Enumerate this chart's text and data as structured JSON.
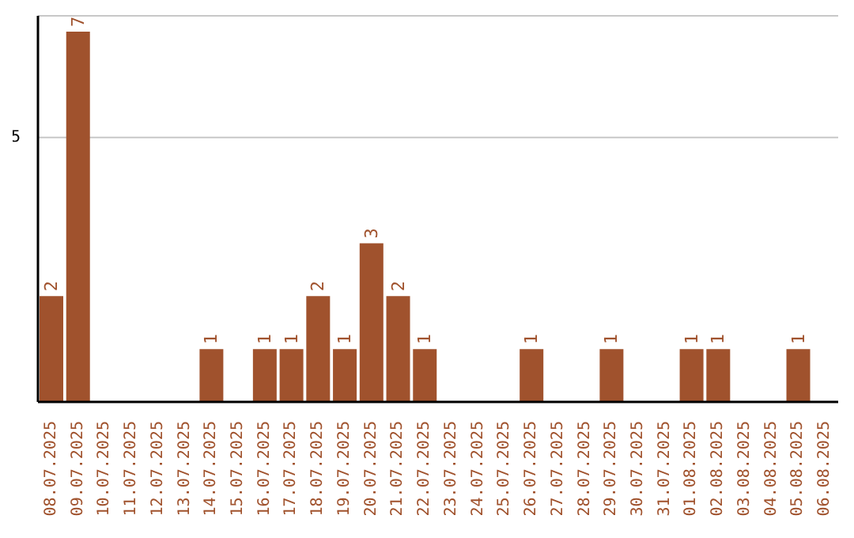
{
  "chart_data": {
    "type": "bar",
    "categories": [
      "08.07.2025",
      "09.07.2025",
      "10.07.2025",
      "11.07.2025",
      "12.07.2025",
      "13.07.2025",
      "14.07.2025",
      "15.07.2025",
      "16.07.2025",
      "17.07.2025",
      "18.07.2025",
      "19.07.2025",
      "20.07.2025",
      "21.07.2025",
      "22.07.2025",
      "23.07.2025",
      "24.07.2025",
      "25.07.2025",
      "26.07.2025",
      "27.07.2025",
      "28.07.2025",
      "29.07.2025",
      "30.07.2025",
      "31.07.2025",
      "01.08.2025",
      "02.08.2025",
      "03.08.2025",
      "04.08.2025",
      "05.08.2025",
      "06.08.2025"
    ],
    "values": [
      2,
      7,
      0,
      0,
      0,
      0,
      1,
      0,
      1,
      1,
      2,
      1,
      3,
      2,
      1,
      0,
      0,
      0,
      1,
      0,
      0,
      1,
      0,
      0,
      1,
      1,
      0,
      0,
      1,
      0
    ],
    "value_labels": [
      "2",
      "7",
      null,
      null,
      null,
      null,
      "1",
      null,
      "1",
      "1",
      "2",
      "1",
      "3",
      "2",
      "1",
      null,
      null,
      null,
      "1",
      null,
      null,
      "1",
      null,
      null,
      "1",
      "1",
      null,
      null,
      "1",
      null
    ],
    "color": "#a0522d",
    "ylim": [
      0,
      7.3
    ],
    "yticks": [
      5
    ],
    "grid": "y"
  }
}
